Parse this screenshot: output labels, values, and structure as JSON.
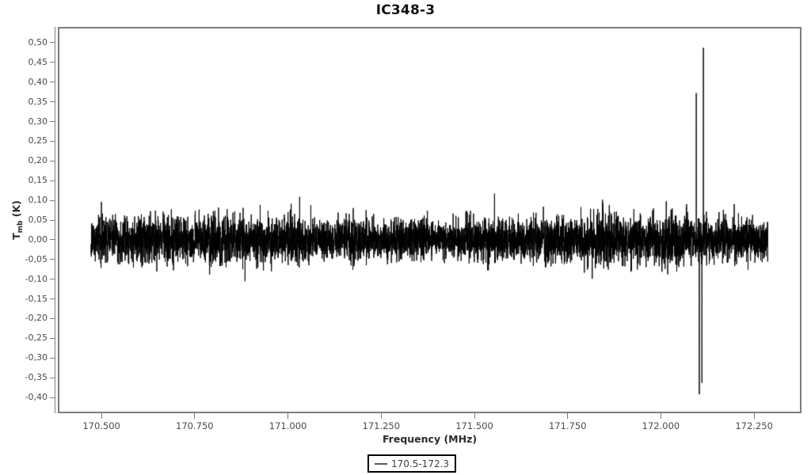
{
  "chart": {
    "title": "IC348-3",
    "xlabel": "Frequency (MHz)",
    "ylabel_t": "T",
    "ylabel_sub": "mb",
    "ylabel_unit": " (K)",
    "legend_label": "170.5-172.3",
    "colors": {
      "series": "#000000",
      "frame": "#7d7d7d",
      "tick_text": "#4a4a4a",
      "label_text": "#2b2b2b",
      "legend_border": "#000000",
      "background": "#ffffff"
    }
  },
  "chart_data": {
    "type": "line",
    "title": "IC348-3",
    "xlabel": "Frequency (MHz)",
    "ylabel": "T_mb (K)",
    "xlim": [
      170.383,
      172.377
    ],
    "ylim": [
      -0.44,
      0.54
    ],
    "grid": false,
    "legend_position": "bottom-center",
    "legend_entries": [
      "170.5-172.3"
    ],
    "x_ticks": [
      {
        "value": 170.5,
        "label": "170.500"
      },
      {
        "value": 170.75,
        "label": "170.750"
      },
      {
        "value": 171.0,
        "label": "171.000"
      },
      {
        "value": 171.25,
        "label": "171.250"
      },
      {
        "value": 171.5,
        "label": "171.500"
      },
      {
        "value": 171.75,
        "label": "171.750"
      },
      {
        "value": 172.0,
        "label": "172.000"
      },
      {
        "value": 172.25,
        "label": "172.250"
      }
    ],
    "y_ticks": [
      {
        "value": 0.5,
        "label": "0,50"
      },
      {
        "value": 0.45,
        "label": "0,45"
      },
      {
        "value": 0.4,
        "label": "0,40"
      },
      {
        "value": 0.35,
        "label": "0,35"
      },
      {
        "value": 0.3,
        "label": "0,30"
      },
      {
        "value": 0.25,
        "label": "0,25"
      },
      {
        "value": 0.2,
        "label": "0,20"
      },
      {
        "value": 0.15,
        "label": "0,15"
      },
      {
        "value": 0.1,
        "label": "0,10"
      },
      {
        "value": 0.05,
        "label": "0,05"
      },
      {
        "value": 0.0,
        "label": "0,00"
      },
      {
        "value": -0.05,
        "label": "-0,05"
      },
      {
        "value": -0.1,
        "label": "-0,10"
      },
      {
        "value": -0.15,
        "label": "-0,15"
      },
      {
        "value": -0.2,
        "label": "-0,20"
      },
      {
        "value": -0.25,
        "label": "-0,25"
      },
      {
        "value": -0.3,
        "label": "-0,30"
      },
      {
        "value": -0.35,
        "label": "-0,35"
      },
      {
        "value": -0.4,
        "label": "-0,40"
      }
    ],
    "series": [
      {
        "name": "170.5-172.3",
        "color": "#000000",
        "x_start": 170.472,
        "x_end": 172.287,
        "n_points": 6000,
        "baseline_K": 0.0,
        "noise_sigma_K": 0.0275,
        "noise_band_K": [
          -0.1,
          0.11
        ],
        "spikes": [
          {
            "x": 170.885,
            "y": -0.105
          },
          {
            "x": 171.554,
            "y": 0.117
          },
          {
            "x": 172.095,
            "y": 0.372
          },
          {
            "x": 172.103,
            "y": -0.392
          },
          {
            "x": 172.11,
            "y": -0.363
          },
          {
            "x": 172.114,
            "y": 0.487
          }
        ]
      }
    ]
  }
}
